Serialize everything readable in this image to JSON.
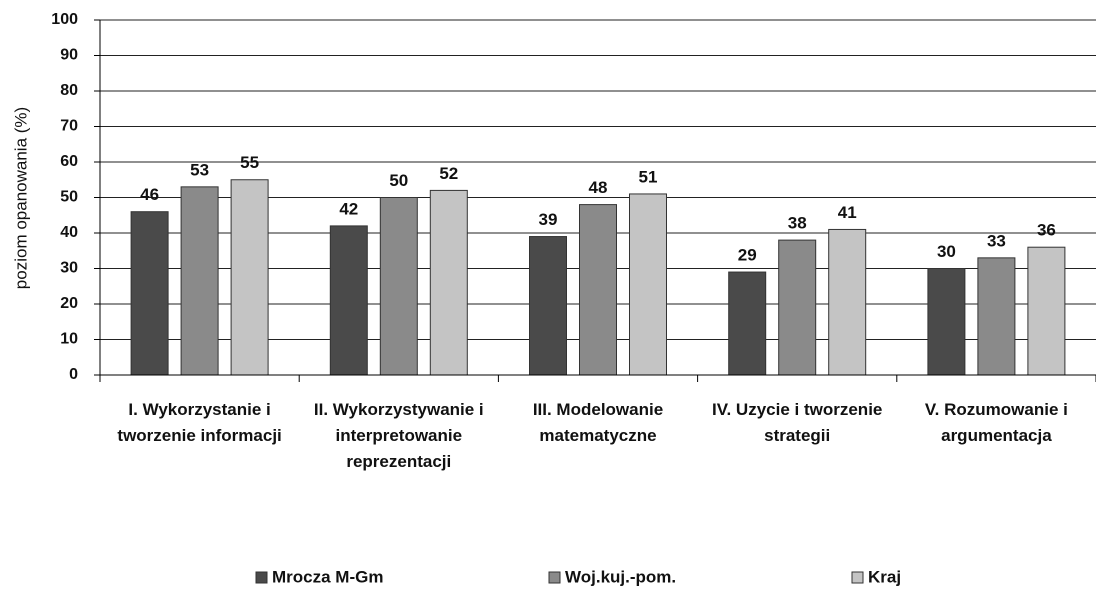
{
  "chart_data": {
    "type": "bar",
    "y_label": "poziom opanowania (%)",
    "categories": [
      "I. Wykorzystanie i tworzenie informacji",
      "II. Wykorzystywanie i interpretowanie reprezentacji",
      "III. Modelowanie matematyczne",
      "IV. Uzycie i tworzenie strategii",
      "V. Rozumowanie i argumentacja"
    ],
    "series": [
      {
        "name": "Mrocza M-Gm",
        "color": "#4a4a4a",
        "values": [
          46,
          42,
          39,
          29,
          30
        ]
      },
      {
        "name": "Woj.kuj.-pom.",
        "color": "#8a8a8a",
        "values": [
          53,
          50,
          48,
          38,
          33
        ]
      },
      {
        "name": "Kraj",
        "color": "#c4c4c4",
        "values": [
          55,
          52,
          51,
          41,
          36
        ]
      }
    ],
    "ylim": [
      0,
      100
    ],
    "yticks": [
      0,
      10,
      20,
      30,
      40,
      50,
      60,
      70,
      80,
      90,
      100
    ],
    "grid": true
  }
}
